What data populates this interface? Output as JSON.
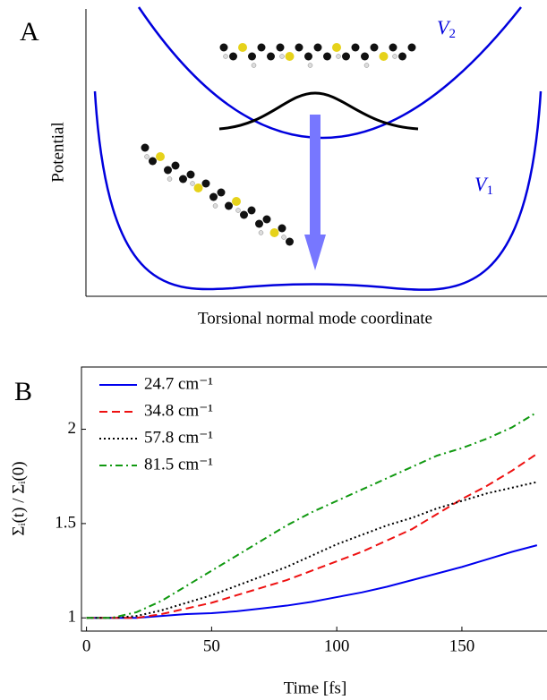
{
  "diagram": {
    "panel_label": "A",
    "upper_curve": {
      "symbol": "V",
      "subscript": "2"
    },
    "lower_curve": {
      "symbol": "V",
      "subscript": "1"
    },
    "y_axis_label": "Potential",
    "x_axis_label": "Torsional normal mode coordinate"
  },
  "chart_data": {
    "type": "line",
    "panel_label": "B",
    "x_label": "Time [fs]",
    "y_label": "Σᵢ(t) / Σᵢ(0)",
    "x": [
      0,
      10,
      20,
      30,
      40,
      50,
      60,
      70,
      80,
      90,
      100,
      110,
      120,
      130,
      140,
      150,
      160,
      170,
      180
    ],
    "xlim": [
      -2,
      184
    ],
    "xticks": [
      0,
      50,
      100,
      150
    ],
    "ylim": [
      0.93,
      2.33
    ],
    "yticks": [
      1,
      1.5,
      2
    ],
    "legend": "upper left",
    "series": [
      {
        "name": "24.7 cm⁻¹",
        "color": "#0000ee",
        "dash": "solid",
        "values": [
          1,
          1,
          1,
          1.01,
          1.02,
          1.025,
          1.035,
          1.05,
          1.065,
          1.085,
          1.11,
          1.135,
          1.165,
          1.2,
          1.235,
          1.27,
          1.31,
          1.35,
          1.385
        ]
      },
      {
        "name": "34.8 cm⁻¹",
        "color": "#ee1111",
        "dash": "dashed",
        "values": [
          1,
          1,
          1,
          1.02,
          1.05,
          1.08,
          1.12,
          1.16,
          1.2,
          1.25,
          1.3,
          1.35,
          1.41,
          1.47,
          1.55,
          1.63,
          1.7,
          1.78,
          1.87
        ]
      },
      {
        "name": "57.8 cm⁻¹",
        "color": "#000000",
        "dash": "dotted",
        "values": [
          1,
          1,
          1.01,
          1.04,
          1.08,
          1.12,
          1.17,
          1.22,
          1.27,
          1.33,
          1.39,
          1.44,
          1.49,
          1.53,
          1.58,
          1.62,
          1.66,
          1.69,
          1.72
        ]
      },
      {
        "name": "81.5 cm⁻¹",
        "color": "#119911",
        "dash": "dashdot",
        "values": [
          1,
          1,
          1.03,
          1.09,
          1.17,
          1.25,
          1.33,
          1.41,
          1.49,
          1.56,
          1.62,
          1.68,
          1.74,
          1.8,
          1.86,
          1.9,
          1.95,
          2.01,
          2.09
        ]
      }
    ]
  }
}
